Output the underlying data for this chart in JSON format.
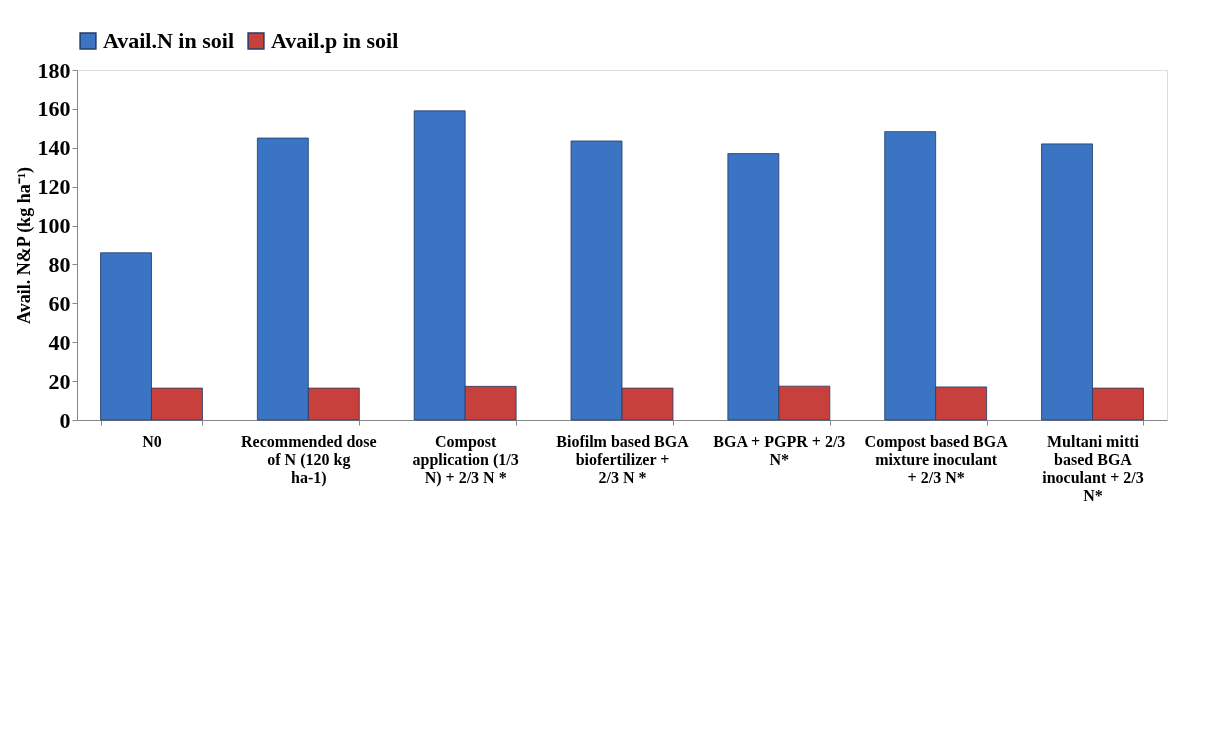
{
  "chart_data": {
    "type": "bar",
    "categories": [
      "N0",
      "Recommended dose of N (120 kg ha-1)",
      "Compost application (1/3 N) + 2/3 N *",
      "Biofilm based BGA biofertilizer + 2/3 N *",
      "BGA + PGPR + 2/3 N*",
      "Compost based BGA mixture inoculant + 2/3 N*",
      "Multani mitti based BGA inoculant + 2/3 N*"
    ],
    "series": [
      {
        "name": "Avail.N in soil",
        "color": "#3b74c2",
        "values": [
          86,
          145,
          159,
          143.5,
          137,
          148.3,
          142
        ]
      },
      {
        "name": "Avail.p in soil",
        "color": "#c8403c",
        "values": [
          16.4,
          16.4,
          17.3,
          16.4,
          17.4,
          17,
          16.4
        ]
      }
    ],
    "ylabel": "Avail. N&P (kg ha⁻¹)",
    "ylim": [
      0,
      180
    ],
    "yticks": [
      0,
      20,
      40,
      60,
      80,
      100,
      120,
      140,
      160,
      180
    ],
    "legend": "top",
    "grid": false
  }
}
